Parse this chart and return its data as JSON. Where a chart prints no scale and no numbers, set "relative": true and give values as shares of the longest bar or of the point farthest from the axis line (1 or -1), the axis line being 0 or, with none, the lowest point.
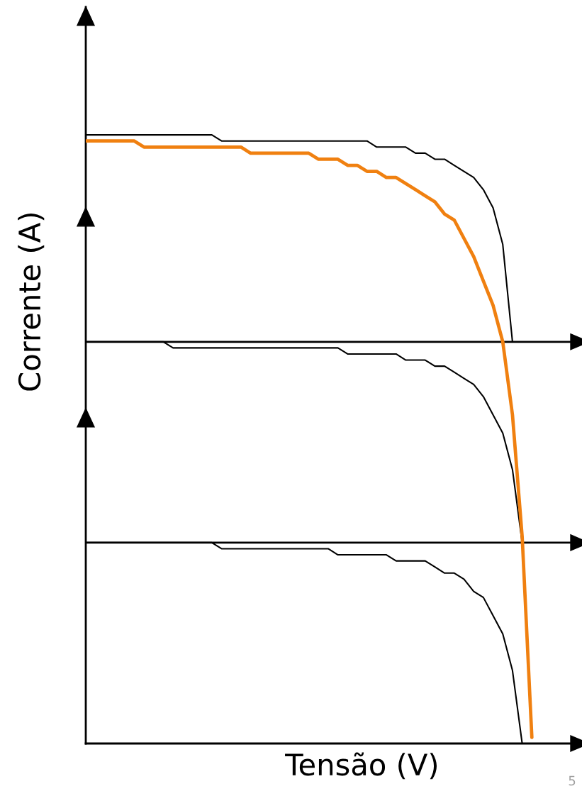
{
  "chart_data": {
    "type": "line",
    "relative": true,
    "xlabel": "Tensão (V)",
    "ylabel": "Corrente (A)",
    "marker": "none",
    "categories": [
      null,
      null,
      null,
      null,
      null,
      null,
      null,
      null,
      null,
      null,
      null,
      null,
      null,
      null,
      null,
      null,
      null,
      null,
      null,
      null,
      null,
      null,
      null,
      null,
      null,
      null,
      null,
      null,
      null,
      null,
      null,
      null,
      null,
      null,
      null,
      null,
      null,
      null,
      null,
      null,
      null,
      null,
      null,
      null,
      null,
      null,
      null,
      null,
      null,
      null,
      null
    ],
    "series": [
      {
        "color": "#000000",
        "values": [
          1.0,
          1.0,
          1.0,
          1.0,
          1.0,
          1.0,
          1.0,
          1.0,
          1.0,
          1.0,
          1.0,
          1.0,
          1.0,
          1.0,
          0.99,
          0.99,
          0.99,
          0.99,
          0.99,
          0.99,
          0.99,
          0.99,
          0.99,
          0.99,
          0.99,
          0.99,
          0.99,
          0.99,
          0.99,
          0.99,
          0.98,
          0.98,
          0.98,
          0.98,
          0.97,
          0.97,
          0.96,
          0.96,
          0.95,
          0.94,
          0.93,
          0.91,
          0.88,
          0.82,
          0.66,
          null,
          null,
          null,
          null,
          null,
          null
        ]
      },
      {
        "color": "#000000",
        "values": [
          0.66,
          0.66,
          0.66,
          0.66,
          0.66,
          0.66,
          0.66,
          0.66,
          0.66,
          0.65,
          0.65,
          0.65,
          0.65,
          0.65,
          0.65,
          0.65,
          0.65,
          0.65,
          0.65,
          0.65,
          0.65,
          0.65,
          0.65,
          0.65,
          0.65,
          0.65,
          0.65,
          0.64,
          0.64,
          0.64,
          0.64,
          0.64,
          0.64,
          0.63,
          0.63,
          0.63,
          0.62,
          0.62,
          0.61,
          0.6,
          0.59,
          0.57,
          0.54,
          0.51,
          0.45,
          0.33,
          null,
          null,
          null,
          null,
          null
        ]
      },
      {
        "color": "#000000",
        "values": [
          0.33,
          0.33,
          0.33,
          0.33,
          0.33,
          0.33,
          0.33,
          0.33,
          0.33,
          0.33,
          0.33,
          0.33,
          0.33,
          0.33,
          0.32,
          0.32,
          0.32,
          0.32,
          0.32,
          0.32,
          0.32,
          0.32,
          0.32,
          0.32,
          0.32,
          0.32,
          0.31,
          0.31,
          0.31,
          0.31,
          0.31,
          0.31,
          0.3,
          0.3,
          0.3,
          0.3,
          0.29,
          0.28,
          0.28,
          0.27,
          0.25,
          0.24,
          0.21,
          0.18,
          0.12,
          0.0,
          null,
          null,
          null,
          null,
          null
        ]
      },
      {
        "color": "#f08010",
        "values": [
          0.99,
          0.99,
          0.99,
          0.99,
          0.99,
          0.99,
          0.98,
          0.98,
          0.98,
          0.98,
          0.98,
          0.98,
          0.98,
          0.98,
          0.98,
          0.98,
          0.98,
          0.97,
          0.97,
          0.97,
          0.97,
          0.97,
          0.97,
          0.97,
          0.96,
          0.96,
          0.96,
          0.95,
          0.95,
          0.94,
          0.94,
          0.93,
          0.93,
          0.92,
          0.91,
          0.9,
          0.89,
          0.87,
          0.86,
          0.83,
          0.8,
          0.76,
          0.72,
          0.66,
          0.54,
          0.34,
          0.01,
          null,
          null,
          null,
          null
        ]
      },
      {
        "color": "#000000",
        "values": [
          0.66,
          0.66,
          0.66,
          0.66,
          0.66,
          0.66,
          0.66,
          0.66,
          0.66,
          0.66,
          0.66,
          0.66,
          0.66,
          0.66,
          0.66,
          0.66,
          0.66,
          0.66,
          0.66,
          0.66,
          0.66,
          0.66,
          0.66,
          0.66,
          0.66,
          0.66,
          0.66,
          0.66,
          0.66,
          0.66,
          0.66,
          0.66,
          0.66,
          0.66,
          0.66,
          0.66,
          0.66,
          0.66,
          0.66,
          0.66,
          0.66,
          0.66,
          0.66,
          0.66,
          0.66,
          0.66,
          0.66,
          0.66,
          0.66,
          0.66,
          0.66
        ]
      },
      {
        "color": "#000000",
        "values": [
          0.33,
          0.33,
          0.33,
          0.33,
          0.33,
          0.33,
          0.33,
          0.33,
          0.33,
          0.33,
          0.33,
          0.33,
          0.33,
          0.33,
          0.33,
          0.33,
          0.33,
          0.33,
          0.33,
          0.33,
          0.33,
          0.33,
          0.33,
          0.33,
          0.33,
          0.33,
          0.33,
          0.33,
          0.33,
          0.33,
          0.33,
          0.33,
          0.33,
          0.33,
          0.33,
          0.33,
          0.33,
          0.33,
          0.33,
          0.33,
          0.33,
          0.33,
          0.33,
          0.33,
          0.33,
          0.33,
          0.33,
          0.33,
          0.33,
          0.33,
          0.33
        ]
      }
    ],
    "annotations": [
      "5"
    ]
  }
}
